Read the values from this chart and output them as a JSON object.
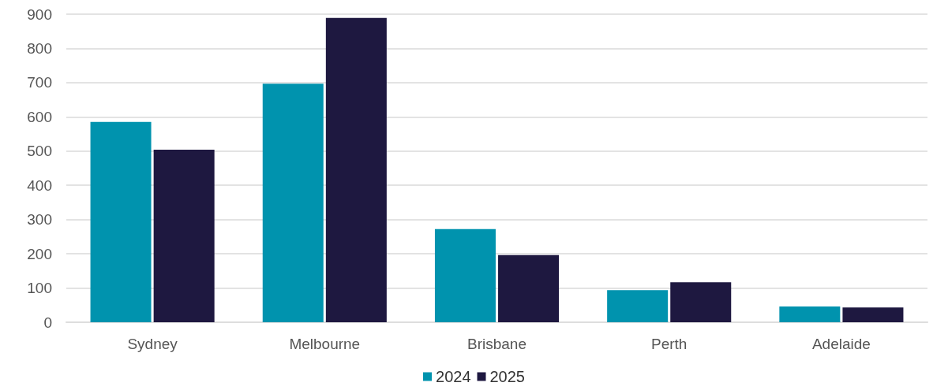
{
  "chart_data": {
    "type": "bar",
    "categories": [
      "Sydney",
      "Melbourne",
      "Brisbane",
      "Perth",
      "Adelaide"
    ],
    "series": [
      {
        "name": "2024",
        "color": "#0093ae",
        "values": [
          585,
          697,
          272,
          94,
          46
        ]
      },
      {
        "name": "2025",
        "color": "#1e1840",
        "values": [
          504,
          889,
          196,
          117,
          43
        ]
      }
    ],
    "ylim": [
      0,
      900
    ],
    "yticks": [
      0,
      100,
      200,
      300,
      400,
      500,
      600,
      700,
      800,
      900
    ],
    "grid": "y",
    "legend": "bottom"
  }
}
